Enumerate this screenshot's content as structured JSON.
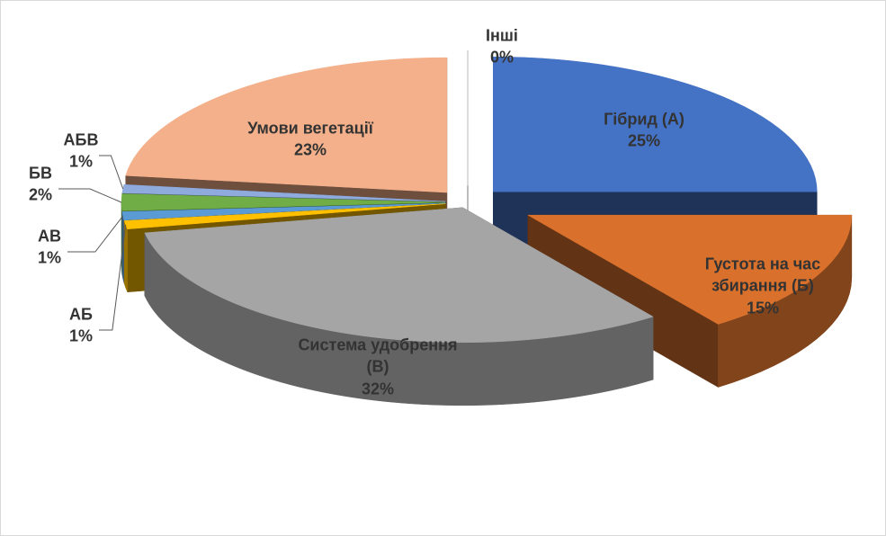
{
  "chart_data": {
    "type": "pie",
    "categories": [
      "Гібрид (А)",
      "Густота на час збирання (Б)",
      "Система удобрення (В)",
      "АБ",
      "АВ",
      "БВ",
      "АБВ",
      "Умови вегетації",
      "Інші"
    ],
    "values": [
      25,
      15,
      32,
      1,
      1,
      2,
      1,
      23,
      0
    ],
    "value_labels": [
      "25%",
      "15%",
      "32%",
      "1%",
      "1%",
      "2%",
      "1%",
      "23%",
      "0%"
    ],
    "colors": [
      "#4472c4",
      "#d9712c",
      "#a5a5a5",
      "#ffc000",
      "#5b9bd5",
      "#70ad47",
      "#8faadc",
      "#f4b08a",
      "#ffffff"
    ]
  }
}
